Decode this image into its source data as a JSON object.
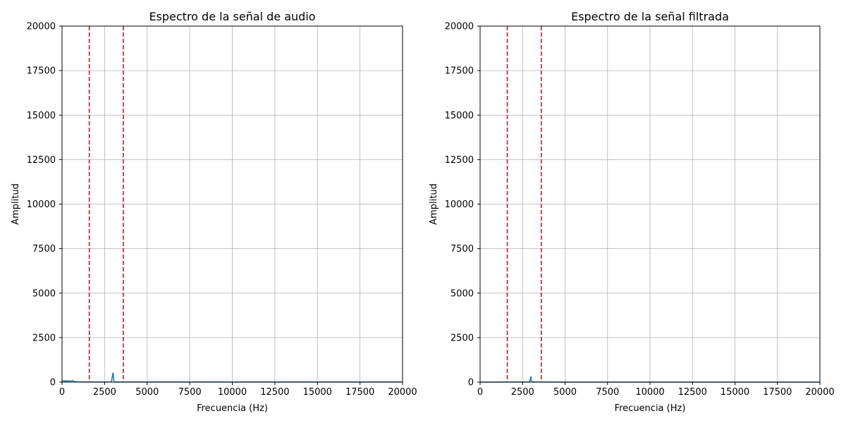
{
  "chart_data": [
    {
      "type": "line",
      "title": "Espectro de la señal de audio",
      "xlabel": "Frecuencia (Hz)",
      "ylabel": "Amplitud",
      "xlim": [
        0,
        20000
      ],
      "ylim": [
        0,
        20000
      ],
      "xticks": [
        0,
        2500,
        5000,
        7500,
        10000,
        12500,
        15000,
        17500,
        20000
      ],
      "yticks": [
        0,
        2500,
        5000,
        7500,
        10000,
        12500,
        15000,
        17500,
        20000
      ],
      "grid": true,
      "series_color": "#1f77b4",
      "series": [
        {
          "x": [
            0,
            50,
            100,
            150,
            200,
            250,
            300,
            350,
            400,
            450,
            500,
            550,
            600,
            650,
            700,
            800,
            1000,
            1500,
            2000,
            2500,
            2900,
            2950,
            2980,
            3000,
            3020,
            3050,
            3100,
            3500,
            5000,
            10000,
            15000,
            20000
          ],
          "y": [
            20,
            60,
            80,
            40,
            90,
            50,
            70,
            30,
            60,
            80,
            40,
            70,
            90,
            60,
            40,
            20,
            10,
            8,
            5,
            5,
            8,
            300,
            500,
            500,
            300,
            10,
            5,
            5,
            5,
            5,
            5,
            5
          ]
        }
      ],
      "vlines": {
        "x": [
          1600,
          3600
        ],
        "color": "#ff0000",
        "style": "dashed"
      }
    },
    {
      "type": "line",
      "title": "Espectro de la señal filtrada",
      "xlabel": "Frecuencia (Hz)",
      "ylabel": "Amplitud",
      "xlim": [
        0,
        20000
      ],
      "ylim": [
        0,
        20000
      ],
      "xticks": [
        0,
        2500,
        5000,
        7500,
        10000,
        12500,
        15000,
        17500,
        20000
      ],
      "yticks": [
        0,
        2500,
        5000,
        7500,
        10000,
        12500,
        15000,
        17500,
        20000
      ],
      "grid": true,
      "series_color": "#1f77b4",
      "series": [
        {
          "x": [
            0,
            1000,
            1500,
            2000,
            2500,
            2900,
            2960,
            2990,
            3000,
            3010,
            3040,
            3100,
            3500,
            5000,
            10000,
            15000,
            20000
          ],
          "y": [
            2,
            2,
            3,
            4,
            5,
            8,
            150,
            300,
            300,
            150,
            8,
            5,
            3,
            2,
            2,
            2,
            2
          ]
        }
      ],
      "vlines": {
        "x": [
          1600,
          3600
        ],
        "color": "#ff0000",
        "style": "dashed"
      }
    }
  ]
}
